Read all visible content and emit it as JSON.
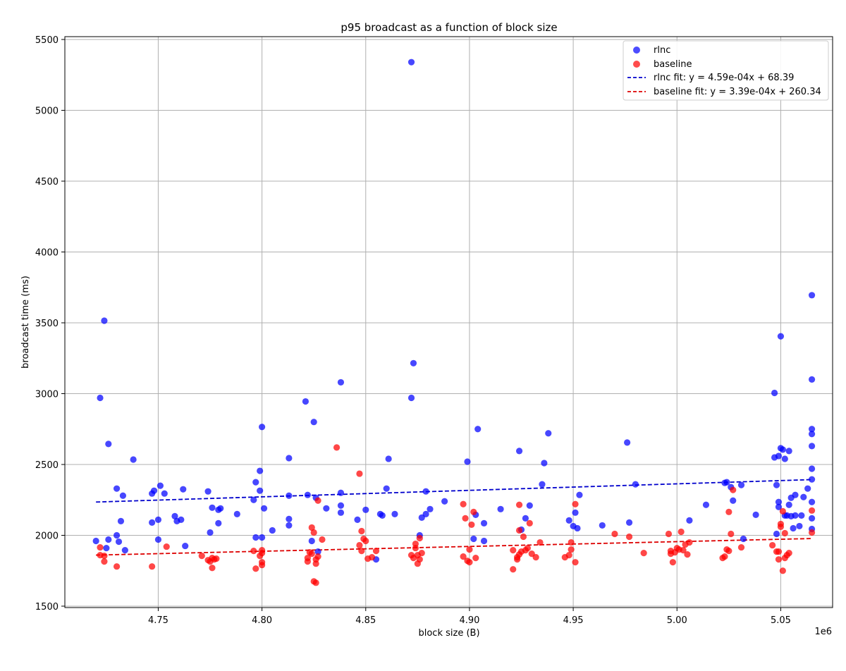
{
  "chart_data": {
    "type": "scatter",
    "title": "p95 broadcast as a function of block size",
    "xlabel": "block size (B)",
    "ylabel": "broadcast time (ms)",
    "x_offset_label": "1e6",
    "x_scale": 1000000,
    "xlim": [
      4.705,
      5.075
    ],
    "ylim": [
      1490,
      5520
    ],
    "xticks": [
      4.75,
      4.8,
      4.85,
      4.9,
      4.95,
      5.0,
      5.05
    ],
    "xtick_labels": [
      "4.75",
      "4.80",
      "4.85",
      "4.90",
      "4.95",
      "5.00",
      "5.05"
    ],
    "yticks": [
      1500,
      2000,
      2500,
      3000,
      3500,
      4000,
      4500,
      5000,
      5500
    ],
    "ytick_labels": [
      "1500",
      "2000",
      "2500",
      "3000",
      "3500",
      "4000",
      "4500",
      "5000",
      "5500"
    ],
    "grid": true,
    "legend_position": "top-right",
    "fit_x_range": [
      4.72,
      5.065
    ],
    "series": [
      {
        "name": "rlnc",
        "kind": "scatter",
        "color": "#0000ff",
        "points": [
          [
            4.72,
            1960
          ],
          [
            4.722,
            2970
          ],
          [
            4.724,
            3515
          ],
          [
            4.725,
            1910
          ],
          [
            4.726,
            2645
          ],
          [
            4.726,
            1970
          ],
          [
            4.73,
            2330
          ],
          [
            4.73,
            2000
          ],
          [
            4.731,
            1955
          ],
          [
            4.732,
            2100
          ],
          [
            4.733,
            2280
          ],
          [
            4.734,
            1895
          ],
          [
            4.738,
            2535
          ],
          [
            4.747,
            2295
          ],
          [
            4.747,
            2090
          ],
          [
            4.748,
            2315
          ],
          [
            4.75,
            1970
          ],
          [
            4.75,
            2110
          ],
          [
            4.751,
            2350
          ],
          [
            4.753,
            2295
          ],
          [
            4.758,
            2135
          ],
          [
            4.759,
            2100
          ],
          [
            4.761,
            2110
          ],
          [
            4.762,
            2325
          ],
          [
            4.763,
            1925
          ],
          [
            4.774,
            2310
          ],
          [
            4.775,
            2020
          ],
          [
            4.776,
            2195
          ],
          [
            4.779,
            2085
          ],
          [
            4.779,
            2180
          ],
          [
            4.78,
            2190
          ],
          [
            4.788,
            2150
          ],
          [
            4.796,
            2250
          ],
          [
            4.797,
            2375
          ],
          [
            4.797,
            1985
          ],
          [
            4.799,
            2315
          ],
          [
            4.799,
            2455
          ],
          [
            4.8,
            2765
          ],
          [
            4.8,
            1985
          ],
          [
            4.801,
            2190
          ],
          [
            4.805,
            2035
          ],
          [
            4.813,
            2545
          ],
          [
            4.813,
            2280
          ],
          [
            4.813,
            2115
          ],
          [
            4.813,
            2070
          ],
          [
            4.821,
            2945
          ],
          [
            4.822,
            2285
          ],
          [
            4.824,
            1960
          ],
          [
            4.825,
            2800
          ],
          [
            4.826,
            2265
          ],
          [
            4.827,
            1885
          ],
          [
            4.831,
            2190
          ],
          [
            4.838,
            3080
          ],
          [
            4.838,
            2300
          ],
          [
            4.838,
            2210
          ],
          [
            4.838,
            2160
          ],
          [
            4.846,
            2110
          ],
          [
            4.85,
            2180
          ],
          [
            4.855,
            1830
          ],
          [
            4.857,
            2150
          ],
          [
            4.858,
            2140
          ],
          [
            4.86,
            2330
          ],
          [
            4.861,
            2540
          ],
          [
            4.864,
            2150
          ],
          [
            4.872,
            2970
          ],
          [
            4.873,
            3215
          ],
          [
            4.876,
            2000
          ],
          [
            4.877,
            2125
          ],
          [
            4.879,
            2150
          ],
          [
            4.879,
            2310
          ],
          [
            4.881,
            2185
          ],
          [
            4.888,
            2240
          ],
          [
            4.872,
            5340
          ],
          [
            4.899,
            2520
          ],
          [
            4.902,
            1975
          ],
          [
            4.903,
            2145
          ],
          [
            4.904,
            2750
          ],
          [
            4.907,
            2085
          ],
          [
            4.907,
            1960
          ],
          [
            4.915,
            2185
          ],
          [
            4.924,
            2595
          ],
          [
            4.925,
            2040
          ],
          [
            4.927,
            2120
          ],
          [
            4.929,
            2210
          ],
          [
            4.936,
            2510
          ],
          [
            4.935,
            2360
          ],
          [
            4.938,
            2720
          ],
          [
            4.948,
            2105
          ],
          [
            4.95,
            2065
          ],
          [
            4.951,
            2160
          ],
          [
            4.952,
            2050
          ],
          [
            4.953,
            2285
          ],
          [
            4.964,
            2070
          ],
          [
            4.976,
            2655
          ],
          [
            4.977,
            2090
          ],
          [
            4.98,
            2360
          ],
          [
            5.006,
            2105
          ],
          [
            5.014,
            2215
          ],
          [
            5.023,
            2370
          ],
          [
            5.024,
            2375
          ],
          [
            5.026,
            2340
          ],
          [
            5.027,
            2245
          ],
          [
            5.031,
            2355
          ],
          [
            5.032,
            1975
          ],
          [
            5.038,
            2145
          ],
          [
            5.047,
            3005
          ],
          [
            5.047,
            2550
          ],
          [
            5.048,
            2010
          ],
          [
            5.048,
            2355
          ],
          [
            5.049,
            2560
          ],
          [
            5.049,
            2235
          ],
          [
            5.049,
            2200
          ],
          [
            5.05,
            2615
          ],
          [
            5.05,
            3405
          ],
          [
            5.051,
            2605
          ],
          [
            5.052,
            2140
          ],
          [
            5.052,
            2540
          ],
          [
            5.053,
            2140
          ],
          [
            5.054,
            2215
          ],
          [
            5.054,
            2595
          ],
          [
            5.055,
            2135
          ],
          [
            5.055,
            2265
          ],
          [
            5.056,
            2050
          ],
          [
            5.057,
            2285
          ],
          [
            5.057,
            2140
          ],
          [
            5.059,
            2065
          ],
          [
            5.06,
            2140
          ],
          [
            5.061,
            2270
          ],
          [
            5.063,
            2330
          ],
          [
            5.065,
            3695
          ],
          [
            5.065,
            3100
          ],
          [
            5.065,
            2750
          ],
          [
            5.065,
            2715
          ],
          [
            5.065,
            2630
          ],
          [
            5.065,
            2470
          ],
          [
            5.065,
            2395
          ],
          [
            5.065,
            2235
          ],
          [
            5.065,
            2120
          ],
          [
            5.065,
            2045
          ]
        ]
      },
      {
        "name": "baseline",
        "kind": "scatter",
        "color": "#ff0000",
        "points": [
          [
            4.722,
            1915
          ],
          [
            4.722,
            1860
          ],
          [
            4.724,
            1855
          ],
          [
            4.724,
            1815
          ],
          [
            4.73,
            1780
          ],
          [
            4.747,
            1780
          ],
          [
            4.754,
            1920
          ],
          [
            4.771,
            1855
          ],
          [
            4.774,
            1825
          ],
          [
            4.775,
            1815
          ],
          [
            4.776,
            1840
          ],
          [
            4.776,
            1770
          ],
          [
            4.777,
            1830
          ],
          [
            4.778,
            1835
          ],
          [
            4.796,
            1890
          ],
          [
            4.797,
            1765
          ],
          [
            4.799,
            1855
          ],
          [
            4.8,
            1875
          ],
          [
            4.8,
            1895
          ],
          [
            4.8,
            1810
          ],
          [
            4.8,
            1790
          ],
          [
            4.822,
            1840
          ],
          [
            4.822,
            1815
          ],
          [
            4.823,
            1880
          ],
          [
            4.824,
            2055
          ],
          [
            4.824,
            1870
          ],
          [
            4.825,
            2020
          ],
          [
            4.825,
            1675
          ],
          [
            4.826,
            1665
          ],
          [
            4.826,
            1800
          ],
          [
            4.826,
            1830
          ],
          [
            4.827,
            1850
          ],
          [
            4.827,
            2245
          ],
          [
            4.829,
            1970
          ],
          [
            4.836,
            2620
          ],
          [
            4.847,
            2435
          ],
          [
            4.847,
            1930
          ],
          [
            4.848,
            1890
          ],
          [
            4.848,
            2030
          ],
          [
            4.849,
            1975
          ],
          [
            4.85,
            1960
          ],
          [
            4.851,
            1835
          ],
          [
            4.853,
            1845
          ],
          [
            4.855,
            1890
          ],
          [
            4.872,
            1860
          ],
          [
            4.873,
            1840
          ],
          [
            4.874,
            1910
          ],
          [
            4.874,
            1940
          ],
          [
            4.875,
            1860
          ],
          [
            4.875,
            1800
          ],
          [
            4.876,
            1980
          ],
          [
            4.876,
            1830
          ],
          [
            4.877,
            1875
          ],
          [
            4.897,
            2220
          ],
          [
            4.897,
            1850
          ],
          [
            4.898,
            2120
          ],
          [
            4.899,
            1820
          ],
          [
            4.9,
            1900
          ],
          [
            4.9,
            1810
          ],
          [
            4.901,
            2075
          ],
          [
            4.902,
            2165
          ],
          [
            4.903,
            1840
          ],
          [
            4.921,
            1760
          ],
          [
            4.921,
            1895
          ],
          [
            4.923,
            1845
          ],
          [
            4.923,
            1830
          ],
          [
            4.924,
            2215
          ],
          [
            4.924,
            1865
          ],
          [
            4.924,
            2035
          ],
          [
            4.925,
            1885
          ],
          [
            4.926,
            1990
          ],
          [
            4.927,
            1895
          ],
          [
            4.928,
            1910
          ],
          [
            4.929,
            2085
          ],
          [
            4.93,
            1870
          ],
          [
            4.932,
            1845
          ],
          [
            4.934,
            1950
          ],
          [
            4.946,
            1845
          ],
          [
            4.948,
            1860
          ],
          [
            4.949,
            1900
          ],
          [
            4.949,
            1950
          ],
          [
            4.951,
            2220
          ],
          [
            4.951,
            1810
          ],
          [
            4.97,
            2010
          ],
          [
            4.977,
            1990
          ],
          [
            4.984,
            1875
          ],
          [
            4.996,
            2010
          ],
          [
            4.997,
            1890
          ],
          [
            4.997,
            1870
          ],
          [
            4.998,
            1810
          ],
          [
            4.999,
            1880
          ],
          [
            5.0,
            1910
          ],
          [
            5.001,
            1900
          ],
          [
            5.002,
            2025
          ],
          [
            5.003,
            1895
          ],
          [
            5.004,
            1935
          ],
          [
            5.005,
            1865
          ],
          [
            5.006,
            1950
          ],
          [
            5.022,
            1840
          ],
          [
            5.023,
            1850
          ],
          [
            5.024,
            1900
          ],
          [
            5.025,
            2165
          ],
          [
            5.025,
            1890
          ],
          [
            5.026,
            2010
          ],
          [
            5.027,
            2320
          ],
          [
            5.031,
            1915
          ],
          [
            5.046,
            1930
          ],
          [
            5.048,
            1885
          ],
          [
            5.049,
            1885
          ],
          [
            5.049,
            1830
          ],
          [
            5.05,
            2080
          ],
          [
            5.05,
            2060
          ],
          [
            5.051,
            2170
          ],
          [
            5.051,
            1750
          ],
          [
            5.052,
            2015
          ],
          [
            5.052,
            1840
          ],
          [
            5.053,
            1860
          ],
          [
            5.054,
            1875
          ],
          [
            5.065,
            2175
          ],
          [
            5.065,
            2020
          ]
        ]
      },
      {
        "name": "rlnc fit: y = 4.59e-04x + 68.39",
        "kind": "fit",
        "color": "#0000cc",
        "slope": 0.000459,
        "intercept": 68.39
      },
      {
        "name": "baseline fit: y = 3.39e-04x + 260.34",
        "kind": "fit",
        "color": "#dd0000",
        "slope": 0.000339,
        "intercept": 260.34
      }
    ]
  }
}
